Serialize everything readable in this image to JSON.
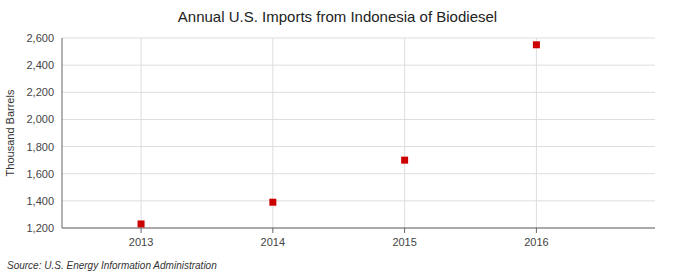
{
  "chart_data": {
    "type": "scatter",
    "title": "Annual U.S. Imports from Indonesia of Biodiesel",
    "ylabel": "Thousand Barrels",
    "source": "Source: U.S. Energy Information Administration",
    "x": [
      2013,
      2014,
      2015,
      2016
    ],
    "y": [
      1230,
      1390,
      1700,
      2550
    ],
    "color": "#cc0000",
    "marker": "square",
    "xlim": [
      2012.4,
      2016.9
    ],
    "ylim": [
      1200,
      2600
    ],
    "xticks": [
      2013,
      2014,
      2015,
      2016
    ],
    "yticks": [
      {
        "value": 1200,
        "label": "1,200"
      },
      {
        "value": 1400,
        "label": "1,400"
      },
      {
        "value": 1600,
        "label": "1,600"
      },
      {
        "value": 1800,
        "label": "1,800"
      },
      {
        "value": 2000,
        "label": "2,000"
      },
      {
        "value": 2200,
        "label": "2,200"
      },
      {
        "value": 2400,
        "label": "2,400"
      },
      {
        "value": 2600,
        "label": "2,600"
      }
    ],
    "grid": true
  }
}
